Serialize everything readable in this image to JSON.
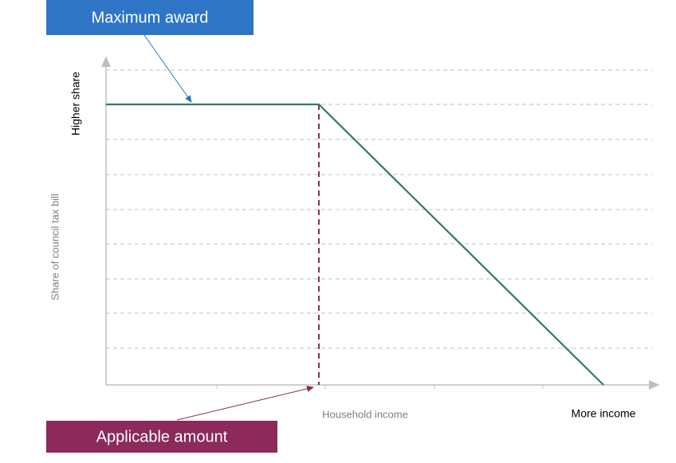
{
  "header": {
    "title": "Maximum award"
  },
  "axes": {
    "y_top_label": "Higher share",
    "y_label": "Share of council tax bill",
    "x_label": "Household income",
    "x_end_label": "More income"
  },
  "footer": {
    "label": "Applicable amount"
  }
}
